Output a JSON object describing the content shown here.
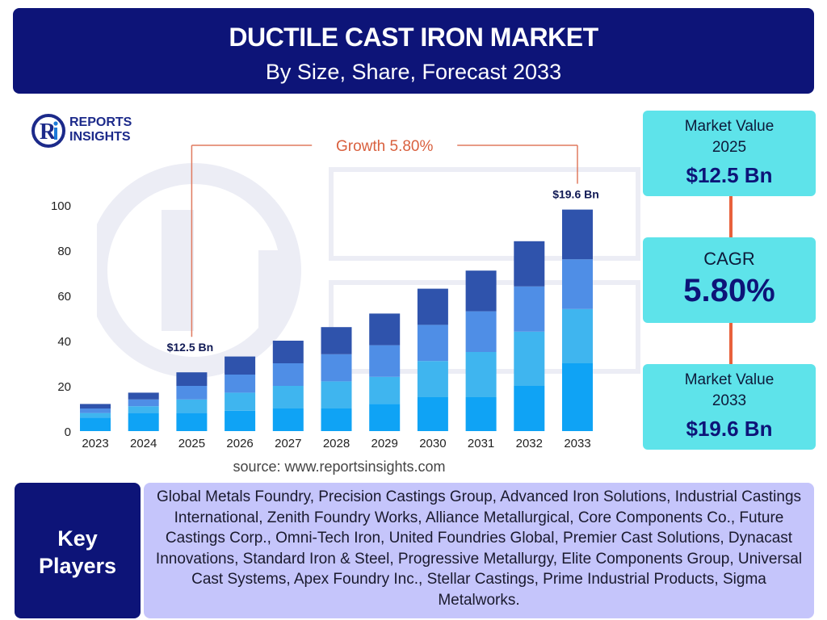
{
  "header": {
    "title": "DUCTILE CAST IRON MARKET",
    "subtitle": "By Size, Share, Forecast 2033"
  },
  "logo": {
    "line1": "REPORTS",
    "line2": "INSIGHTS"
  },
  "cards": {
    "value_2025_label_1": "Market Value",
    "value_2025_label_2": "2025",
    "value_2025": "$12.5 Bn",
    "cagr_label": "CAGR",
    "cagr_value": "5.80%",
    "value_2033_label_1": "Market Value",
    "value_2033_label_2": "2033",
    "value_2033": "$19.6 Bn"
  },
  "source": "source: www.reportsinsights.com",
  "key_players": {
    "label_line1": "Key",
    "label_line2": "Players",
    "list": "Global Metals Foundry, Precision Castings Group, Advanced Iron Solutions, Industrial Castings International, Zenith Foundry Works, Alliance Metallurgical, Core Components Co., Future Castings Corp., Omni-Tech Iron, United Foundries Global, Premier Cast Solutions, Dynacast Innovations, Standard Iron & Steel, Progressive Metallurgy, Elite Components Group, Universal Cast Systems, Apex Foundry Inc., Stellar Castings, Prime Industrial Products, Sigma Metalworks."
  },
  "chart_data": {
    "type": "bar",
    "stacked": true,
    "categories": [
      "2023",
      "2024",
      "2025",
      "2026",
      "2027",
      "2028",
      "2029",
      "2030",
      "2031",
      "2032",
      "2033"
    ],
    "series": [
      {
        "values": [
          6,
          8,
          8,
          9,
          10,
          10,
          12,
          15,
          15,
          20,
          30
        ]
      },
      {
        "values": [
          2,
          3,
          6,
          8,
          10,
          12,
          12,
          16,
          20,
          24,
          24
        ]
      },
      {
        "values": [
          2,
          3,
          6,
          8,
          10,
          12,
          14,
          16,
          18,
          20,
          22
        ]
      },
      {
        "values": [
          2,
          3,
          6,
          8,
          10,
          12,
          14,
          16,
          18,
          20,
          22
        ]
      }
    ],
    "colors": [
      "#0fa3f5",
      "#3fb5ef",
      "#4f8ee6",
      "#2f53ac"
    ],
    "ylim": [
      0,
      100
    ],
    "yticks": [
      0,
      20,
      40,
      60,
      80,
      100
    ],
    "grid": false,
    "annotations": {
      "start_label": "$12.5 Bn",
      "start_category": "2025",
      "end_label": "$19.6 Bn",
      "end_category": "2033",
      "growth_label": "Growth  5.80%"
    },
    "bracket_color": "#e07a5f"
  }
}
